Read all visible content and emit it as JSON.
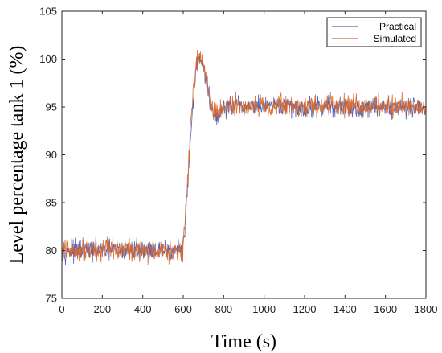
{
  "chart_data": {
    "type": "line",
    "title": "",
    "xlabel": "Time (s)",
    "ylabel": "Level percentage tank 1 (%)",
    "xlim": [
      0,
      1800
    ],
    "ylim": [
      75,
      105
    ],
    "xticks": [
      0,
      200,
      400,
      600,
      800,
      1000,
      1200,
      1400,
      1600,
      1800
    ],
    "yticks": [
      75,
      80,
      85,
      90,
      95,
      100,
      105
    ],
    "grid": false,
    "legend_position": "top-right",
    "series": [
      {
        "name": "Practical",
        "color": "#4f5fb0",
        "x": [
          0,
          50,
          100,
          150,
          200,
          250,
          300,
          350,
          400,
          450,
          500,
          550,
          600,
          610,
          620,
          630,
          640,
          650,
          660,
          670,
          680,
          690,
          700,
          710,
          720,
          730,
          740,
          750,
          760,
          770,
          780,
          790,
          800,
          850,
          900,
          950,
          1000,
          1050,
          1100,
          1150,
          1200,
          1250,
          1300,
          1350,
          1400,
          1450,
          1500,
          1550,
          1600,
          1650,
          1700,
          1750,
          1800
        ],
        "y": [
          80.0,
          79.9,
          80.1,
          80.0,
          80.0,
          80.1,
          79.9,
          80.0,
          80.0,
          80.1,
          79.9,
          80.0,
          80.1,
          82.5,
          86.0,
          89.5,
          93.0,
          96.0,
          98.2,
          99.6,
          100.2,
          100.0,
          99.2,
          98.0,
          96.8,
          95.8,
          95.0,
          94.4,
          94.1,
          94.0,
          94.2,
          94.6,
          94.9,
          95.1,
          95.0,
          95.1,
          95.0,
          95.0,
          95.1,
          95.0,
          94.9,
          95.0,
          95.1,
          95.0,
          95.0,
          94.9,
          95.0,
          95.1,
          95.0,
          95.0,
          95.1,
          95.0,
          94.9
        ],
        "noise": 0.75
      },
      {
        "name": "Simulated",
        "color": "#d9662a",
        "x": [
          0,
          50,
          100,
          150,
          200,
          250,
          300,
          350,
          400,
          450,
          500,
          550,
          600,
          610,
          620,
          630,
          640,
          650,
          660,
          670,
          680,
          690,
          700,
          710,
          720,
          730,
          740,
          750,
          760,
          770,
          780,
          790,
          800,
          850,
          900,
          950,
          1000,
          1050,
          1100,
          1150,
          1200,
          1250,
          1300,
          1350,
          1400,
          1450,
          1500,
          1550,
          1600,
          1650,
          1700,
          1750,
          1800
        ],
        "y": [
          80.1,
          80.0,
          80.1,
          80.2,
          80.0,
          80.1,
          80.0,
          80.1,
          80.1,
          80.0,
          80.1,
          80.0,
          80.2,
          83.0,
          86.8,
          90.5,
          94.0,
          96.9,
          98.9,
          100.1,
          100.6,
          100.4,
          99.5,
          98.2,
          97.0,
          96.0,
          95.2,
          94.6,
          94.3,
          94.2,
          94.4,
          94.8,
          95.1,
          95.2,
          95.1,
          95.2,
          95.1,
          95.1,
          95.2,
          95.1,
          95.0,
          95.1,
          95.2,
          95.1,
          95.1,
          95.0,
          95.1,
          95.2,
          95.1,
          95.1,
          95.2,
          95.1,
          95.0
        ],
        "noise": 0.85
      }
    ]
  }
}
